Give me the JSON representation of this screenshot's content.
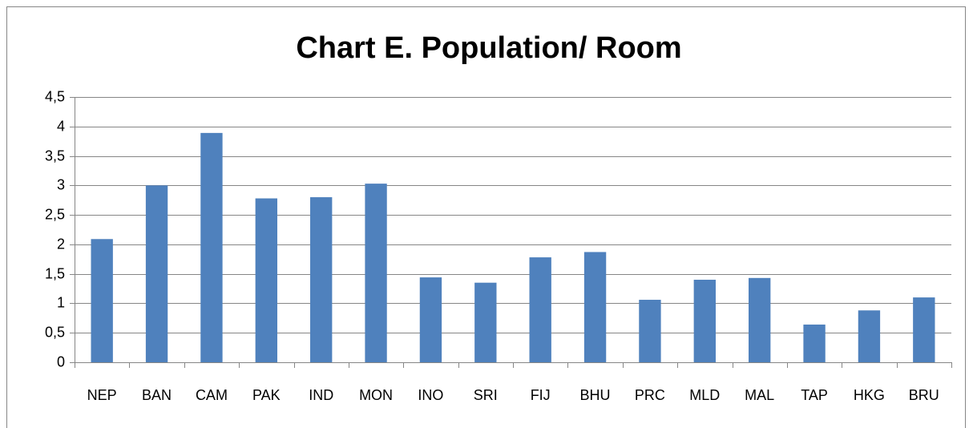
{
  "chart_data": {
    "type": "bar",
    "title": "Chart E. Population/ Room",
    "categories": [
      "NEP",
      "BAN",
      "CAM",
      "PAK",
      "IND",
      "MON",
      "INO",
      "SRI",
      "FIJ",
      "BHU",
      "PRC",
      "MLD",
      "MAL",
      "TAP",
      "HKG",
      "BRU"
    ],
    "values": [
      2.09,
      3.0,
      3.89,
      2.78,
      2.8,
      3.03,
      1.44,
      1.35,
      1.78,
      1.87,
      1.06,
      1.4,
      1.43,
      0.64,
      0.88,
      1.1
    ],
    "color": "#4f81bd",
    "ylim": [
      0,
      4.5
    ],
    "yticks": [
      0,
      {
        "value": 0.5,
        "label": "0,5"
      },
      1,
      {
        "value": 1.5,
        "label": "1,5"
      },
      2,
      {
        "value": 2.5,
        "label": "2,5"
      },
      3,
      {
        "value": 3.5,
        "label": "3,5"
      },
      4,
      {
        "value": 4.5,
        "label": "4,5"
      }
    ],
    "grid": true
  }
}
